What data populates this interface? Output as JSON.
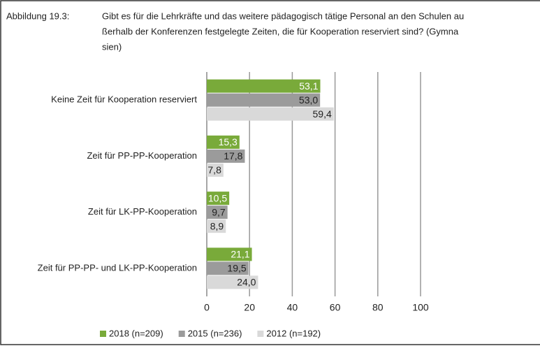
{
  "chart_data": {
    "type": "hbar",
    "figure_label": "Abbildung 19.3:",
    "title_lines": [
      "Gibt es für die Lehrkräfte und das weitere pädagogisch tätige Personal an den Schulen au",
      "ßerhalb der Konferenzen festgelegte Zeiten, die für Kooperation reserviert sind? (Gymna",
      "sien)"
    ],
    "categories": [
      "Keine Zeit für Kooperation reserviert",
      "Zeit für PP-PP-Kooperation",
      "Zeit für LK-PP-Kooperation",
      "Zeit für PP-PP- und LK-PP-Kooperation"
    ],
    "series": [
      {
        "name": "2018 (n=209)",
        "color": "#79aa3a",
        "values": [
          53.1,
          15.3,
          10.5,
          21.1
        ],
        "value_labels": [
          "53,1",
          "15,3",
          "10,5",
          "21,1"
        ]
      },
      {
        "name": "2015 (n=236)",
        "color": "#9b9b9b",
        "values": [
          53.0,
          17.8,
          9.7,
          19.5
        ],
        "value_labels": [
          "53,0",
          "17,8",
          "9,7",
          "19,5"
        ]
      },
      {
        "name": "2012 (n=192)",
        "color": "#d9d9d9",
        "values": [
          59.4,
          7.8,
          8.9,
          24.0
        ],
        "value_labels": [
          "59,4",
          "7,8",
          "8,9",
          "24,0"
        ]
      }
    ],
    "xlim": [
      0,
      100
    ],
    "xticks": [
      0,
      20,
      40,
      60,
      80,
      100
    ],
    "grid": true,
    "legend": "bottom"
  }
}
